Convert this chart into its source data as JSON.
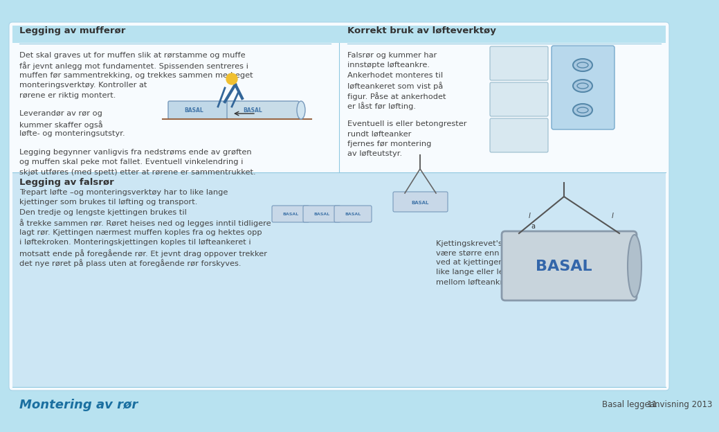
{
  "bg_color": "#b8e2f0",
  "white_color": "#ffffff",
  "lower_section_color": "#c5e5f0",
  "text_color": "#444444",
  "heading_color": "#333333",
  "title_color": "#1a6fa0",
  "divider_color": "#90c8e0",
  "top_heading_left": "Legging av mufferør",
  "top_heading_right": "Korrekt bruk av løfteverktøy",
  "section2_heading": "Legging av falsrør",
  "bottom_left_title": "Montering av rør",
  "bottom_right_text": "Basal leggeanvisning 2013",
  "page_number": "11",
  "para1_line1": "Det skal graves ut for muffen slik at rørstamme og muffe",
  "para1_line2": "får jevnt anlegg mot fundamentet. Spissenden sentreres i",
  "para1_line3": "muffen før sammentrekking, og trekkes sammen med eget",
  "para1_line4": "monteringsverktøy. Kontroller at",
  "para1_line5": "rørene er riktig montert.",
  "para2_line1": "Leverandør av rør og",
  "para2_line2": "kummer skaffer også",
  "para2_line3": "løfte- og monteringsutstyr.",
  "para3_line1": "Legging begynner vanligvis fra nedstrøms ende av grøften",
  "para3_line2": "og muffen skal peke mot fallet. Eventuell vinkelendring i",
  "para3_line3": "skjøt utføres (med spett) etter at rørene er sammentrukket.",
  "right_para1_line1": "Falsrør og kummer har",
  "right_para1_line2": "innstøpte løfteankre.",
  "right_para1_line3": "Ankerhodet monteres til",
  "right_para1_line4": "løfteankeret som vist på",
  "right_para1_line5": "figur. Påse at ankerhodet",
  "right_para1_line6": "er låst før løfting.",
  "right_para2_line1": "Eventuell is eller betongrester",
  "right_para2_line2": "rundt løfteanker",
  "right_para2_line3": "fjernes før montering",
  "right_para2_line4": "av løfteutstyr.",
  "s2_line1": "Trepart løfte –og monteringsverktøy har to like lange",
  "s2_line2": "kjettinger som brukes til løfting og transport.",
  "s2_line3": "Den tredje og lengste kjettingen brukes til",
  "s2_line4": "å trekke sammen rør. Røret heises ned og legges inntil tidligere",
  "s2_line5": "lagt rør. Kjettingen nærmest muffen koples fra og hektes opp",
  "s2_line6": "i løftekroken. Monteringskjettingen koples til løfteankeret i",
  "s2_line7": "motsatt ende på foregående rør. Et jevnt drag oppover trekker",
  "s2_line8": "det nye røret på plass uten at foregående rør forskyves.",
  "br_line1": "Kjettingskrevet's toppvinkel må ikke",
  "br_line2": "være større enn 60°. Dette oppnås",
  "br_line3": "ved at kjettingene i kjettingskrevet er",
  "br_line4": "like lange eller lengre enn avstanden",
  "br_line5": "mellom løfteankrene ( l > a )."
}
